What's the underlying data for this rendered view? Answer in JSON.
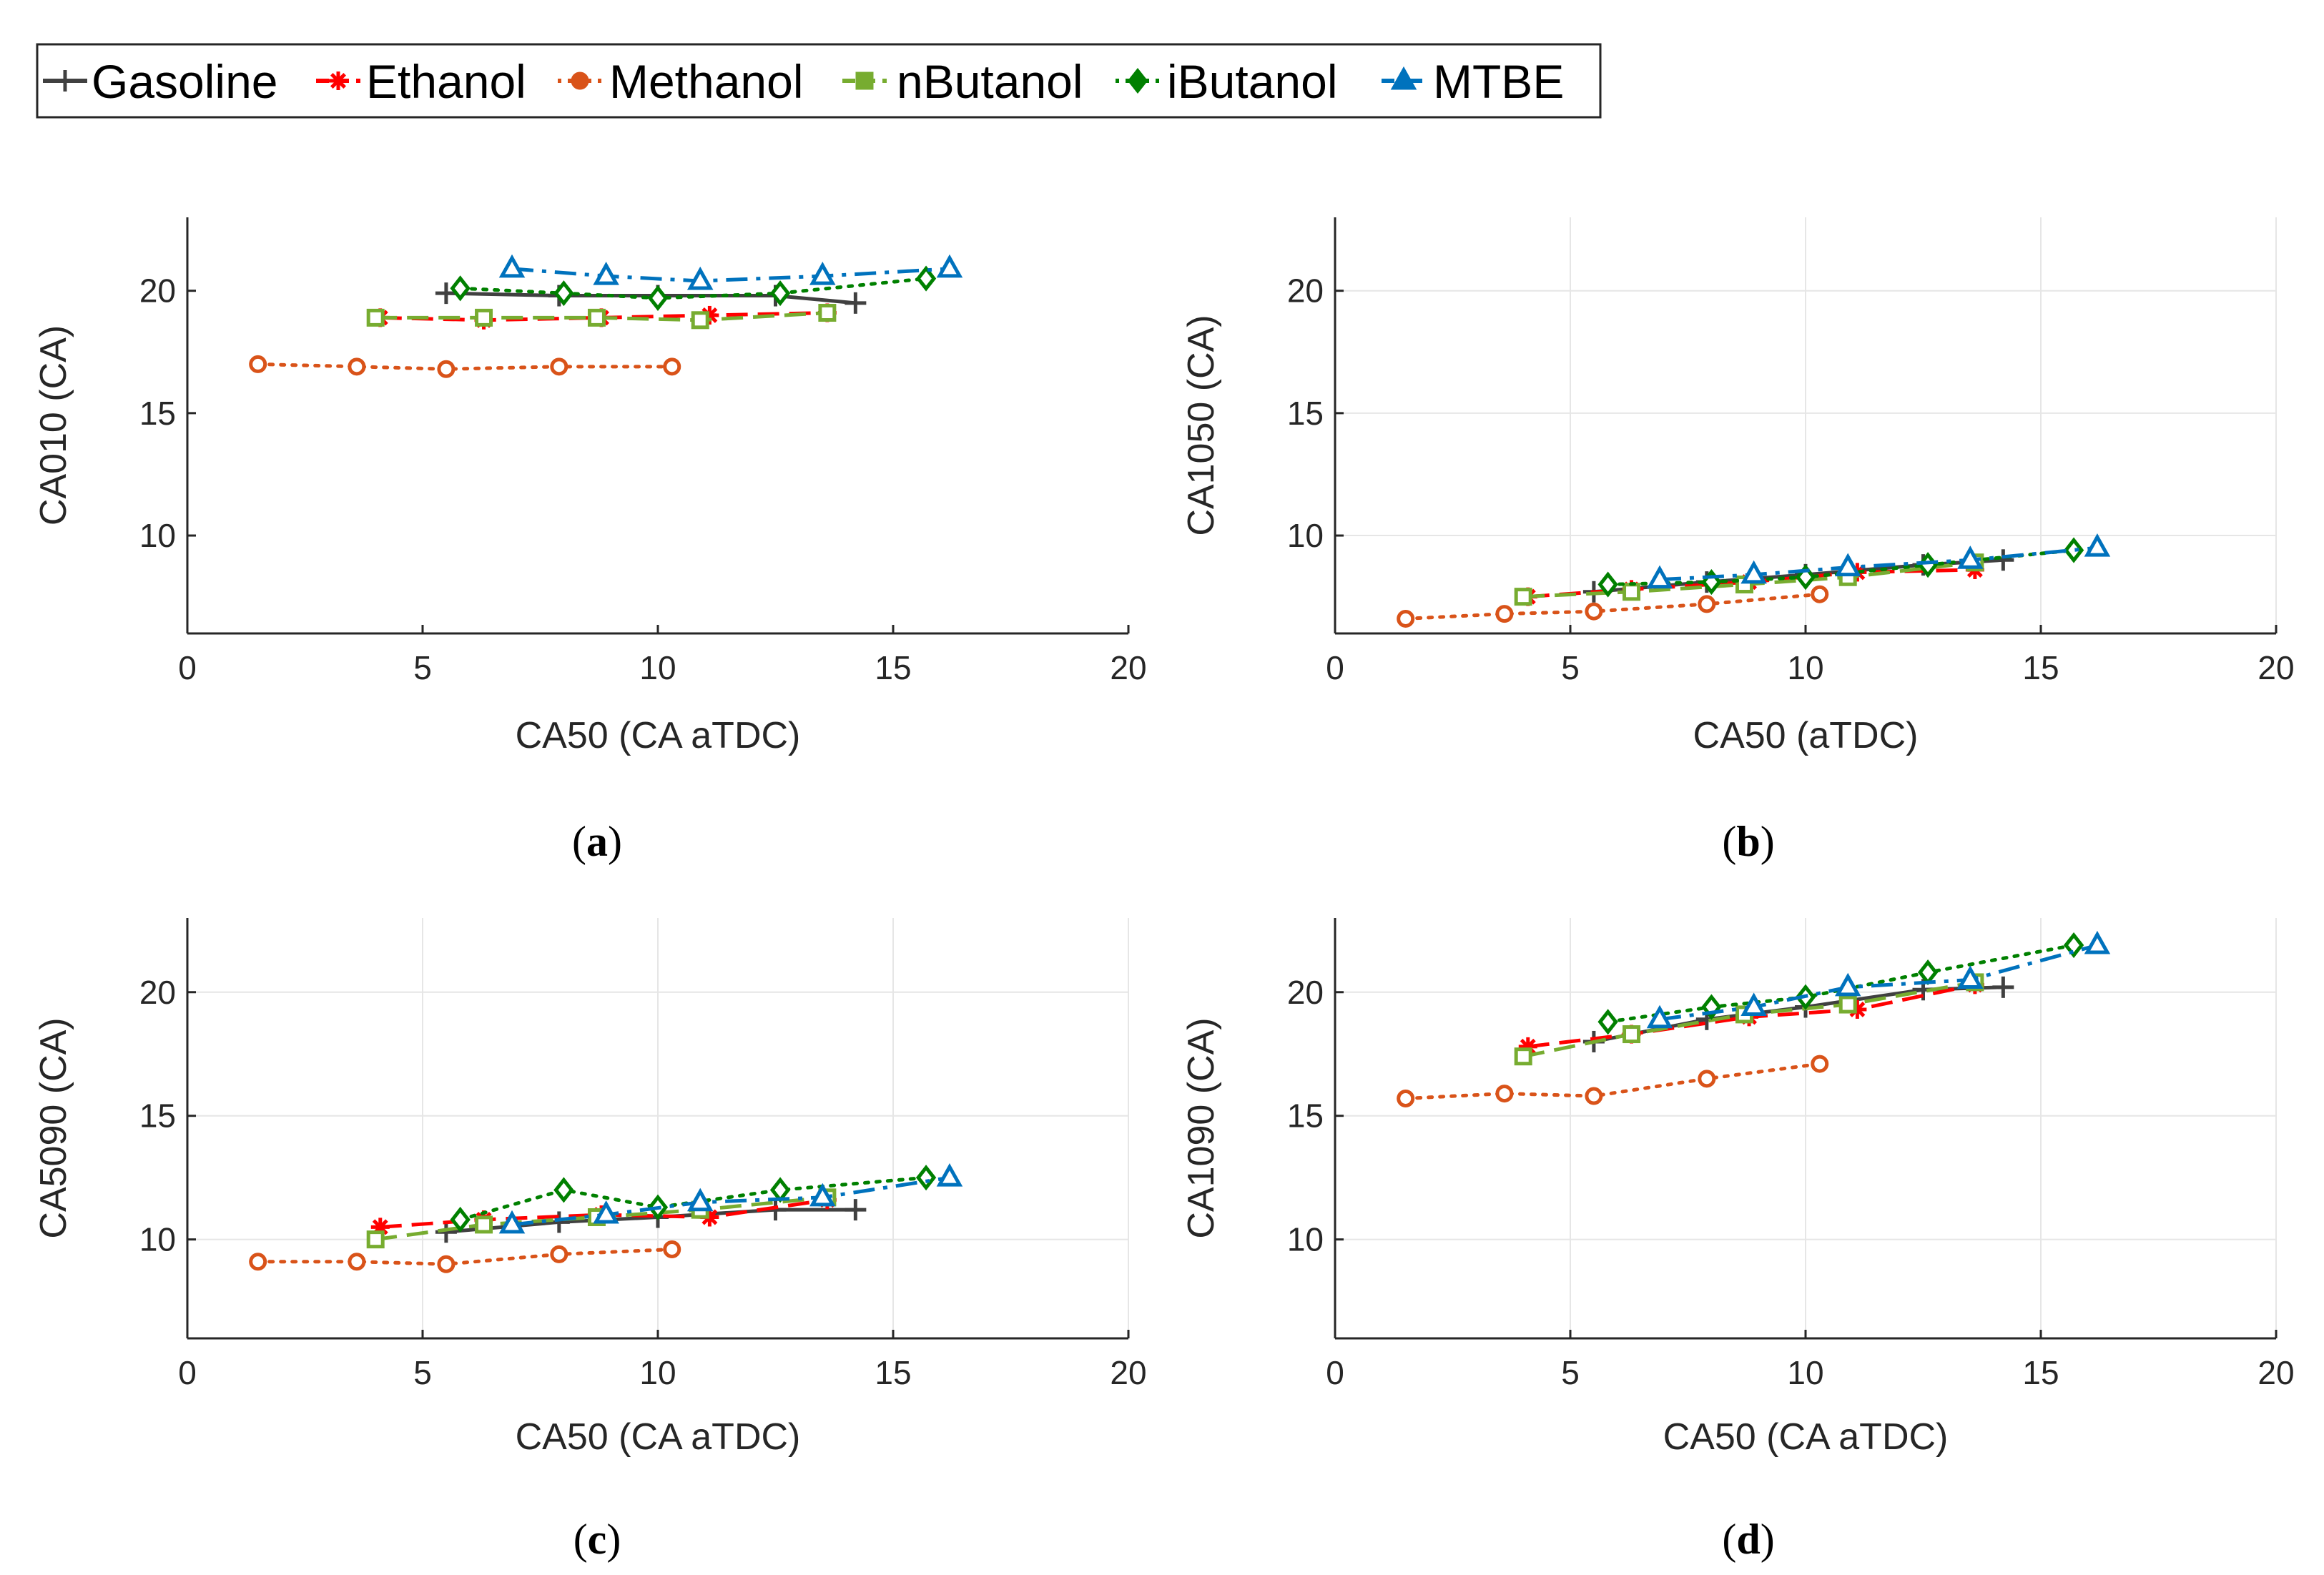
{
  "legend": [
    {
      "name": "Gasoline",
      "color": "#404040",
      "marker": "plus",
      "dash": "solid"
    },
    {
      "name": "Ethanol",
      "color": "#ff0000",
      "marker": "asterisk",
      "dash": "dashed"
    },
    {
      "name": "Methanol",
      "color": "#d95319",
      "marker": "circle",
      "dash": "dotted"
    },
    {
      "name": "nButanol",
      "color": "#77ac30",
      "marker": "square",
      "dash": "dashed"
    },
    {
      "name": "iButanol",
      "color": "#008000",
      "marker": "diamond",
      "dash": "dotted"
    },
    {
      "name": "MTBE",
      "color": "#0072bd",
      "marker": "triangle",
      "dash": "dashdot"
    }
  ],
  "chart_data": [
    {
      "type": "line",
      "panel": "a",
      "caption": "a",
      "xlabel": "CA50 (CA aTDC)",
      "ylabel": "CA010 (CA)",
      "xlim": [
        0,
        20
      ],
      "ylim": [
        6,
        23
      ],
      "xticks": [
        0,
        5,
        10,
        15,
        20
      ],
      "yticks": [
        10,
        15,
        20
      ],
      "grid": false,
      "series": [
        {
          "name": "Gasoline",
          "x": [
            5.5,
            7.9,
            10.0,
            12.5,
            14.2
          ],
          "y": [
            19.9,
            19.8,
            19.8,
            19.8,
            19.5
          ]
        },
        {
          "name": "Ethanol",
          "x": [
            4.1,
            6.3,
            8.8,
            11.1,
            13.6
          ],
          "y": [
            18.9,
            18.8,
            18.9,
            19.0,
            19.1
          ]
        },
        {
          "name": "Methanol",
          "x": [
            1.5,
            3.6,
            5.5,
            7.9,
            10.3
          ],
          "y": [
            17.0,
            16.9,
            16.8,
            16.9,
            16.9
          ]
        },
        {
          "name": "nButanol",
          "x": [
            4.0,
            6.3,
            8.7,
            10.9,
            13.6
          ],
          "y": [
            18.9,
            18.9,
            18.9,
            18.8,
            19.1
          ]
        },
        {
          "name": "iButanol",
          "x": [
            5.8,
            8.0,
            10.0,
            12.6,
            15.7
          ],
          "y": [
            20.1,
            19.9,
            19.7,
            19.9,
            20.5
          ]
        },
        {
          "name": "MTBE",
          "x": [
            6.9,
            8.9,
            10.9,
            13.5,
            16.2
          ],
          "y": [
            20.9,
            20.6,
            20.4,
            20.6,
            20.9
          ]
        }
      ]
    },
    {
      "type": "line",
      "panel": "b",
      "caption": "b",
      "xlabel": "CA50 (aTDC)",
      "ylabel": "CA1050 (CA)",
      "xlim": [
        0,
        20
      ],
      "ylim": [
        6,
        23
      ],
      "xticks": [
        0,
        5,
        10,
        15,
        20
      ],
      "yticks": [
        10,
        15,
        20
      ],
      "grid": true,
      "series": [
        {
          "name": "Gasoline",
          "x": [
            5.5,
            7.9,
            10.0,
            12.5,
            14.2
          ],
          "y": [
            7.7,
            8.1,
            8.4,
            8.8,
            9.0
          ]
        },
        {
          "name": "Ethanol",
          "x": [
            4.1,
            6.3,
            8.8,
            11.1,
            13.6
          ],
          "y": [
            7.5,
            7.8,
            8.1,
            8.5,
            8.6
          ]
        },
        {
          "name": "Methanol",
          "x": [
            1.5,
            3.6,
            5.5,
            7.9,
            10.3
          ],
          "y": [
            6.6,
            6.8,
            6.9,
            7.2,
            7.6
          ]
        },
        {
          "name": "nButanol",
          "x": [
            4.0,
            6.3,
            8.7,
            10.9,
            13.6
          ],
          "y": [
            7.5,
            7.7,
            8.0,
            8.3,
            8.9
          ]
        },
        {
          "name": "iButanol",
          "x": [
            5.8,
            8.0,
            10.0,
            12.6,
            15.7
          ],
          "y": [
            8.0,
            8.1,
            8.3,
            8.8,
            9.4
          ]
        },
        {
          "name": "MTBE",
          "x": [
            6.9,
            8.9,
            10.9,
            13.5,
            16.2
          ],
          "y": [
            8.2,
            8.4,
            8.7,
            9.0,
            9.5
          ]
        }
      ]
    },
    {
      "type": "line",
      "panel": "c",
      "caption": "c",
      "xlabel": "CA50 (CA aTDC)",
      "ylabel": "CA5090 (CA)",
      "xlim": [
        0,
        20
      ],
      "ylim": [
        6,
        23
      ],
      "xticks": [
        0,
        5,
        10,
        15,
        20
      ],
      "yticks": [
        10,
        15,
        20
      ],
      "grid": true,
      "series": [
        {
          "name": "Gasoline",
          "x": [
            5.5,
            7.9,
            10.0,
            12.5,
            14.2
          ],
          "y": [
            10.3,
            10.7,
            10.9,
            11.2,
            11.2
          ]
        },
        {
          "name": "Ethanol",
          "x": [
            4.1,
            6.3,
            8.8,
            11.1,
            13.6
          ],
          "y": [
            10.5,
            10.8,
            11.0,
            10.9,
            11.6
          ]
        },
        {
          "name": "Methanol",
          "x": [
            1.5,
            3.6,
            5.5,
            7.9,
            10.3
          ],
          "y": [
            9.1,
            9.1,
            9.0,
            9.4,
            9.6
          ]
        },
        {
          "name": "nButanol",
          "x": [
            4.0,
            6.3,
            8.7,
            10.9,
            13.6
          ],
          "y": [
            10.0,
            10.6,
            10.9,
            11.2,
            11.7
          ]
        },
        {
          "name": "iButanol",
          "x": [
            5.8,
            8.0,
            10.0,
            12.6,
            15.7
          ],
          "y": [
            10.8,
            12.0,
            11.3,
            12.0,
            12.5
          ]
        },
        {
          "name": "MTBE",
          "x": [
            6.9,
            8.9,
            10.9,
            13.5,
            16.2
          ],
          "y": [
            10.6,
            11.0,
            11.5,
            11.7,
            12.5
          ]
        }
      ]
    },
    {
      "type": "line",
      "panel": "d",
      "caption": "d",
      "xlabel": "CA50 (CA aTDC)",
      "ylabel": "CA1090 (CA)",
      "xlim": [
        0,
        20
      ],
      "ylim": [
        6,
        23
      ],
      "xticks": [
        0,
        5,
        10,
        15,
        20
      ],
      "yticks": [
        10,
        15,
        20
      ],
      "grid": true,
      "series": [
        {
          "name": "Gasoline",
          "x": [
            5.5,
            7.9,
            10.0,
            12.5,
            14.2
          ],
          "y": [
            18.0,
            18.9,
            19.4,
            20.1,
            20.2
          ]
        },
        {
          "name": "Ethanol",
          "x": [
            4.1,
            6.3,
            8.8,
            11.1,
            13.6
          ],
          "y": [
            17.8,
            18.3,
            19.0,
            19.3,
            20.3
          ]
        },
        {
          "name": "Methanol",
          "x": [
            1.5,
            3.6,
            5.5,
            7.9,
            10.3
          ],
          "y": [
            15.7,
            15.9,
            15.8,
            16.5,
            17.1
          ]
        },
        {
          "name": "nButanol",
          "x": [
            4.0,
            6.3,
            8.7,
            10.9,
            13.6
          ],
          "y": [
            17.4,
            18.3,
            19.1,
            19.5,
            20.4
          ]
        },
        {
          "name": "iButanol",
          "x": [
            5.8,
            8.0,
            10.0,
            12.6,
            15.7
          ],
          "y": [
            18.8,
            19.4,
            19.8,
            20.8,
            21.9
          ]
        },
        {
          "name": "MTBE",
          "x": [
            6.9,
            8.9,
            10.9,
            13.5,
            16.2
          ],
          "y": [
            18.9,
            19.4,
            20.2,
            20.5,
            21.9
          ]
        }
      ]
    }
  ]
}
